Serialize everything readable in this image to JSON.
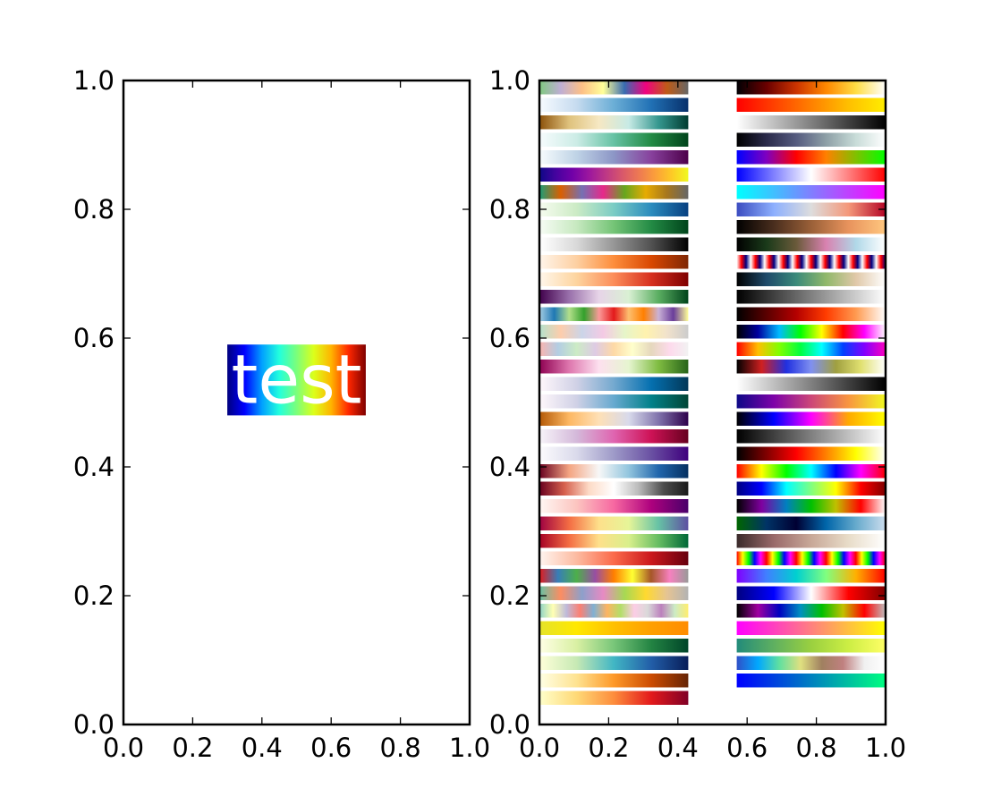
{
  "chart_data": [
    {
      "type": "image",
      "xlim": [
        0.0,
        1.0
      ],
      "ylim": [
        0.0,
        1.0
      ],
      "xticks": [
        "0.0",
        "0.2",
        "0.4",
        "0.6",
        "0.8",
        "1.0"
      ],
      "yticks": [
        "0.0",
        "0.2",
        "0.4",
        "0.6",
        "0.8",
        "1.0"
      ],
      "grid": false,
      "annotation": {
        "text": "test",
        "text_color": "#ffffff",
        "extent": [
          0.3,
          0.7,
          0.48,
          0.59
        ],
        "gradient": [
          "#00007f",
          "#0000ff",
          "#00a0ff",
          "#22ffdd",
          "#7bff7b",
          "#dcff1a",
          "#ffb400",
          "#ff2700",
          "#7f0000"
        ]
      }
    },
    {
      "type": "image",
      "xlim": [
        0.0,
        1.0
      ],
      "ylim": [
        0.0,
        1.0
      ],
      "xticks": [
        "0.0",
        "0.2",
        "0.4",
        "0.6",
        "0.8",
        "1.0"
      ],
      "yticks": [
        "0.0",
        "0.2",
        "0.4",
        "0.6",
        "0.8",
        "1.0"
      ],
      "grid": false,
      "colorbar_columns": [
        {
          "x_range": [
            0.0,
            0.43
          ],
          "bars": [
            [
              "#7fc97f",
              "#beaed4",
              "#fdc086",
              "#ffff99",
              "#386cb0",
              "#f0027f",
              "#bf5b17",
              "#666666"
            ],
            [
              "#f7fbff",
              "#c6dbef",
              "#6baed6",
              "#2171b5",
              "#08306b"
            ],
            [
              "#8c510a",
              "#dfc27d",
              "#f6e8c3",
              "#c7eae5",
              "#35978f",
              "#003c30"
            ],
            [
              "#f7fcfd",
              "#ccece6",
              "#66c2a4",
              "#238b45",
              "#00441b"
            ],
            [
              "#f7fcfd",
              "#bfd3e6",
              "#8c96c6",
              "#88419d",
              "#4d004b"
            ],
            [
              "#0d0887",
              "#46039f",
              "#7201a8",
              "#9c179e",
              "#bd3786",
              "#d8576b",
              "#ed7953",
              "#fb9f3a",
              "#fdca26",
              "#f0f921"
            ],
            [
              "#1b9e77",
              "#d95f02",
              "#7570b3",
              "#e7298a",
              "#66a61e",
              "#e6ab02",
              "#a6761d",
              "#666666"
            ],
            [
              "#f7fcf0",
              "#ccebc5",
              "#7bccc4",
              "#2b8cbe",
              "#084081"
            ],
            [
              "#f7fcf5",
              "#c7e9c0",
              "#74c476",
              "#238b45",
              "#00441b"
            ],
            [
              "#ffffff",
              "#d9d9d9",
              "#969696",
              "#525252",
              "#000000"
            ],
            [
              "#fff5eb",
              "#fdd0a2",
              "#fd8d3c",
              "#d94801",
              "#7f2704"
            ],
            [
              "#fff7ec",
              "#fdd49e",
              "#fc8d59",
              "#d7301f",
              "#7f0000"
            ],
            [
              "#40004b",
              "#9970ab",
              "#e7d4e8",
              "#d9f0d3",
              "#5aae61",
              "#00441b"
            ],
            [
              "#a6cee3",
              "#1f78b4",
              "#b2df8a",
              "#33a02c",
              "#fb9a99",
              "#e31a1c",
              "#fdbf6f",
              "#ff7f00",
              "#cab2d6",
              "#6a3d9a",
              "#ffff99"
            ],
            [
              "#b3e2cd",
              "#fdcdac",
              "#cbd5e8",
              "#f4cae4",
              "#e6f5c9",
              "#fff2ae",
              "#f1e2cc",
              "#cccccc"
            ],
            [
              "#fbb4ae",
              "#b3cde3",
              "#ccebc5",
              "#decbe4",
              "#fed9a6",
              "#ffffcc",
              "#e5d8bd",
              "#fddaec",
              "#f2f2f2"
            ],
            [
              "#8e0152",
              "#de77ae",
              "#fde0ef",
              "#e6f5d0",
              "#7fbc41",
              "#276419"
            ],
            [
              "#fff7fb",
              "#d0d1e6",
              "#74a9cf",
              "#0570b0",
              "#023858"
            ],
            [
              "#fff7fb",
              "#d0d1e6",
              "#67a9cf",
              "#02818a",
              "#014636"
            ],
            [
              "#b35806",
              "#fdb863",
              "#fee0b6",
              "#d8daeb",
              "#8073ac",
              "#2d004b"
            ],
            [
              "#f7f4f9",
              "#d4b9da",
              "#df65b0",
              "#ce1256",
              "#67001f"
            ],
            [
              "#fcfbfd",
              "#dadaeb",
              "#9e9ac8",
              "#6a51a3",
              "#3f007d"
            ],
            [
              "#67001f",
              "#f4a582",
              "#f7f7f7",
              "#92c5de",
              "#2166ac",
              "#053061"
            ],
            [
              "#67001f",
              "#d6604d",
              "#fddbc7",
              "#ffffff",
              "#bababa",
              "#4d4d4d",
              "#1a1a1a"
            ],
            [
              "#fff7f3",
              "#fcc5c0",
              "#f768a1",
              "#ae017e",
              "#49006a"
            ],
            [
              "#9e0142",
              "#f46d43",
              "#fee08b",
              "#e6f598",
              "#66c2a5",
              "#5e4fa2"
            ],
            [
              "#a50026",
              "#f46d43",
              "#fee08b",
              "#d9ef8b",
              "#66bd63",
              "#006837"
            ],
            [
              "#fff5f0",
              "#fcbba1",
              "#fb6a4a",
              "#cb181d",
              "#67000d"
            ],
            [
              "#e41a1c",
              "#377eb8",
              "#4daf4a",
              "#984ea3",
              "#ff7f00",
              "#ffff33",
              "#a65628",
              "#f781bf",
              "#999999"
            ],
            [
              "#66c2a5",
              "#fc8d62",
              "#8da0cb",
              "#e78ac3",
              "#a6d854",
              "#ffd92f",
              "#e5c494",
              "#b3b3b3"
            ],
            [
              "#8dd3c7",
              "#ffffb3",
              "#bebada",
              "#fb8072",
              "#80b1d3",
              "#fdb462",
              "#b3de69",
              "#fccde5",
              "#d9d9d9",
              "#bc80bd",
              "#ccebc5",
              "#ffed6f"
            ],
            [
              "#e5e32a",
              "#ffe800",
              "#ffc000",
              "#ffa000",
              "#ff8c00"
            ],
            [
              "#ffffe5",
              "#d9f0a3",
              "#78c679",
              "#238443",
              "#004529"
            ],
            [
              "#ffffd9",
              "#c7e9b4",
              "#41b6c4",
              "#225ea8",
              "#081d58"
            ],
            [
              "#ffffe5",
              "#fee391",
              "#fe9929",
              "#cc4c02",
              "#662506"
            ],
            [
              "#ffffcc",
              "#fed976",
              "#fd8d3c",
              "#e31a1c",
              "#800026"
            ]
          ]
        },
        {
          "x_range": [
            0.57,
            1.0
          ],
          "bars": [
            [
              "#000004",
              "#6a0000",
              "#cc3300",
              "#ff8800",
              "#ffdd44",
              "#ffffff"
            ],
            [
              "#ff0000",
              "#ff4000",
              "#ff8000",
              "#ffbf00",
              "#ffee00"
            ],
            [
              "#ffffff",
              "#bfbfbf",
              "#808080",
              "#404040",
              "#000000"
            ],
            [
              "#000000",
              "#2a2a4a",
              "#555b7f",
              "#8d9fa6",
              "#c8dcd8",
              "#ffffff"
            ],
            [
              "#0000ff",
              "#7f00bf",
              "#ff0000",
              "#ff8000",
              "#80c000",
              "#00ff00"
            ],
            [
              "#0000ff",
              "#8080ff",
              "#ffffff",
              "#ff8080",
              "#ff0000"
            ],
            [
              "#00ffff",
              "#40bfff",
              "#807fff",
              "#bf40ff",
              "#ff00ff"
            ],
            [
              "#3b4cc0",
              "#8db0fe",
              "#dddddd",
              "#f4987a",
              "#b40426"
            ],
            [
              "#000000",
              "#4a2e1e",
              "#9a6038",
              "#e8935d",
              "#ffc77f"
            ],
            [
              "#000000",
              "#1a3a1a",
              "#6a5a3a",
              "#d882b0",
              "#b0d8e8",
              "#ffffff"
            ],
            [
              "#ffffff",
              "#ff0000",
              "#000080",
              "#ffffff",
              "#ff0000",
              "#000080",
              "#ffffff",
              "#ff0000",
              "#000080",
              "#ffffff",
              "#ff0000",
              "#000080",
              "#ffffff",
              "#ff0000",
              "#000080",
              "#ffffff",
              "#ff0000",
              "#000080",
              "#ffffff",
              "#ff0000",
              "#000080",
              "#ffffff",
              "#ff0000",
              "#000080",
              "#ffffff",
              "#ff0000",
              "#000080",
              "#ffffff",
              "#ff0000",
              "#000080",
              "#ffffff",
              "#ff0000",
              "#000080"
            ],
            [
              "#000000",
              "#1e4a6a",
              "#3a8a7a",
              "#90b86a",
              "#e0c8a8",
              "#ffffff"
            ],
            [
              "#000000",
              "#404040",
              "#808080",
              "#bfbfbf",
              "#ffffff"
            ],
            [
              "#000000",
              "#5a0000",
              "#b40000",
              "#ff3c00",
              "#ff9a50",
              "#ffffff"
            ],
            [
              "#000000",
              "#0000a0",
              "#00bbff",
              "#00ff00",
              "#ffff00",
              "#ff0000",
              "#ff00ff",
              "#ffffff"
            ],
            [
              "#ff0000",
              "#ffbf00",
              "#80ff00",
              "#00ff40",
              "#00ffff",
              "#0040ff",
              "#8000ff",
              "#ff00bf"
            ],
            [
              "#000000",
              "#d02020",
              "#2030e0",
              "#8090f0",
              "#a0a040",
              "#e0e070",
              "#ffffff"
            ],
            [
              "#ffffff",
              "#bfbfbf",
              "#808080",
              "#404040",
              "#000000"
            ],
            [
              "#0d0887",
              "#7e03a8",
              "#cc4778",
              "#f89540",
              "#f0f921"
            ],
            [
              "#000000",
              "#0000ff",
              "#ff00ff",
              "#ffaa00",
              "#ffff00"
            ],
            [
              "#000000",
              "#555555",
              "#aaaaaa",
              "#ffffff"
            ],
            [
              "#000000",
              "#800000",
              "#ff0000",
              "#ff8000",
              "#ffff00",
              "#ffffff"
            ],
            [
              "#ff0000",
              "#ffff00",
              "#00ff00",
              "#00ffff",
              "#0000ff",
              "#ff00ff",
              "#ff0000"
            ],
            [
              "#000080",
              "#0000ff",
              "#00ffff",
              "#80ff80",
              "#ffff00",
              "#ff0000",
              "#800000"
            ],
            [
              "#000000",
              "#8000a0",
              "#0080c0",
              "#00c000",
              "#c0c000",
              "#ff0000",
              "#ffffff"
            ],
            [
              "#006600",
              "#003366",
              "#000033",
              "#0066aa",
              "#66aacc",
              "#ccddee"
            ],
            [
              "#3a2a2a",
              "#9a6a6a",
              "#c8a898",
              "#e8dcc8",
              "#ffffff"
            ],
            [
              "#ff0000",
              "#ffff00",
              "#00ff00",
              "#0000ff",
              "#ff00ff",
              "#ff0000",
              "#ffff00",
              "#00ff00",
              "#0000ff",
              "#ff00ff",
              "#ff0000",
              "#ffff00",
              "#00ff00",
              "#0000ff",
              "#ff00ff",
              "#ff0000",
              "#ffff00",
              "#00ff00",
              "#0000ff",
              "#ff00ff",
              "#ff0000",
              "#ffff00",
              "#00ff00",
              "#0000ff",
              "#ff00ff",
              "#ff0000"
            ],
            [
              "#8000ff",
              "#4080ff",
              "#00d0d0",
              "#80ff80",
              "#ffb000",
              "#ff0000"
            ],
            [
              "#000080",
              "#0000ff",
              "#ffffff",
              "#ff0000",
              "#800000"
            ],
            [
              "#000000",
              "#a000a0",
              "#0000c0",
              "#0090c0",
              "#00c000",
              "#c0c000",
              "#ff0000",
              "#c0c0c0"
            ],
            [
              "#ff00ff",
              "#ffff00"
            ],
            [
              "#228b7a",
              "#5fb060",
              "#9ad040",
              "#ccee44",
              "#ffff66"
            ],
            [
              "#3050c8",
              "#00a8ff",
              "#60e0a0",
              "#e0e080",
              "#a08060",
              "#c08080",
              "#f0f0f0",
              "#ffffff"
            ],
            [
              "#0000ff",
              "#0080c0",
              "#00ff80"
            ]
          ]
        }
      ]
    }
  ]
}
